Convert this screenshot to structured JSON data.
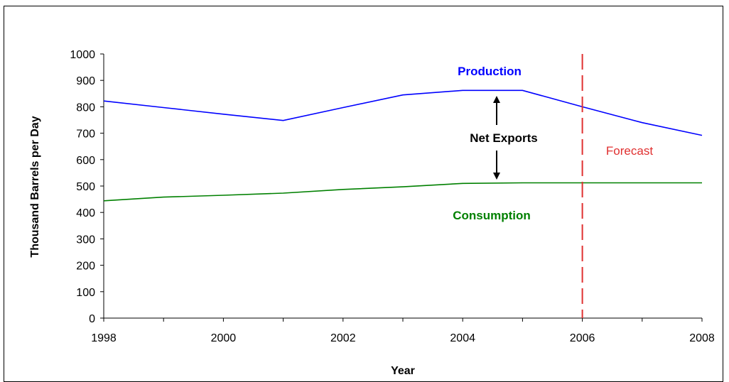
{
  "chart_data": {
    "type": "line",
    "title": "",
    "xlabel": "Year",
    "ylabel": "Thousand Barrels per Day",
    "xlim": [
      1998,
      2008
    ],
    "ylim": [
      0,
      1000
    ],
    "x_ticks": [
      "1998",
      "2000",
      "2002",
      "2004",
      "2006",
      "2008"
    ],
    "y_ticks": [
      "0",
      "100",
      "200",
      "300",
      "400",
      "500",
      "600",
      "700",
      "800",
      "900",
      "1000"
    ],
    "grid": false,
    "x": [
      1998,
      1999,
      2000,
      2001,
      2002,
      2003,
      2004,
      2005,
      2006,
      2007,
      2008
    ],
    "series": [
      {
        "name": "Production",
        "color": "#0000FF",
        "values": [
          822,
          797,
          772,
          748,
          797,
          845,
          862,
          862,
          800,
          740,
          692
        ]
      },
      {
        "name": "Consumption",
        "color": "#008000",
        "values": [
          444,
          458,
          465,
          473,
          487,
          497,
          510,
          512,
          512,
          512,
          512
        ]
      }
    ],
    "forecast_line": {
      "x": 2006,
      "label": "Forecast",
      "color": "#E03030"
    },
    "annotations": {
      "net_exports": "Net Exports",
      "production_label": "Production",
      "consumption_label": "Consumption"
    }
  }
}
